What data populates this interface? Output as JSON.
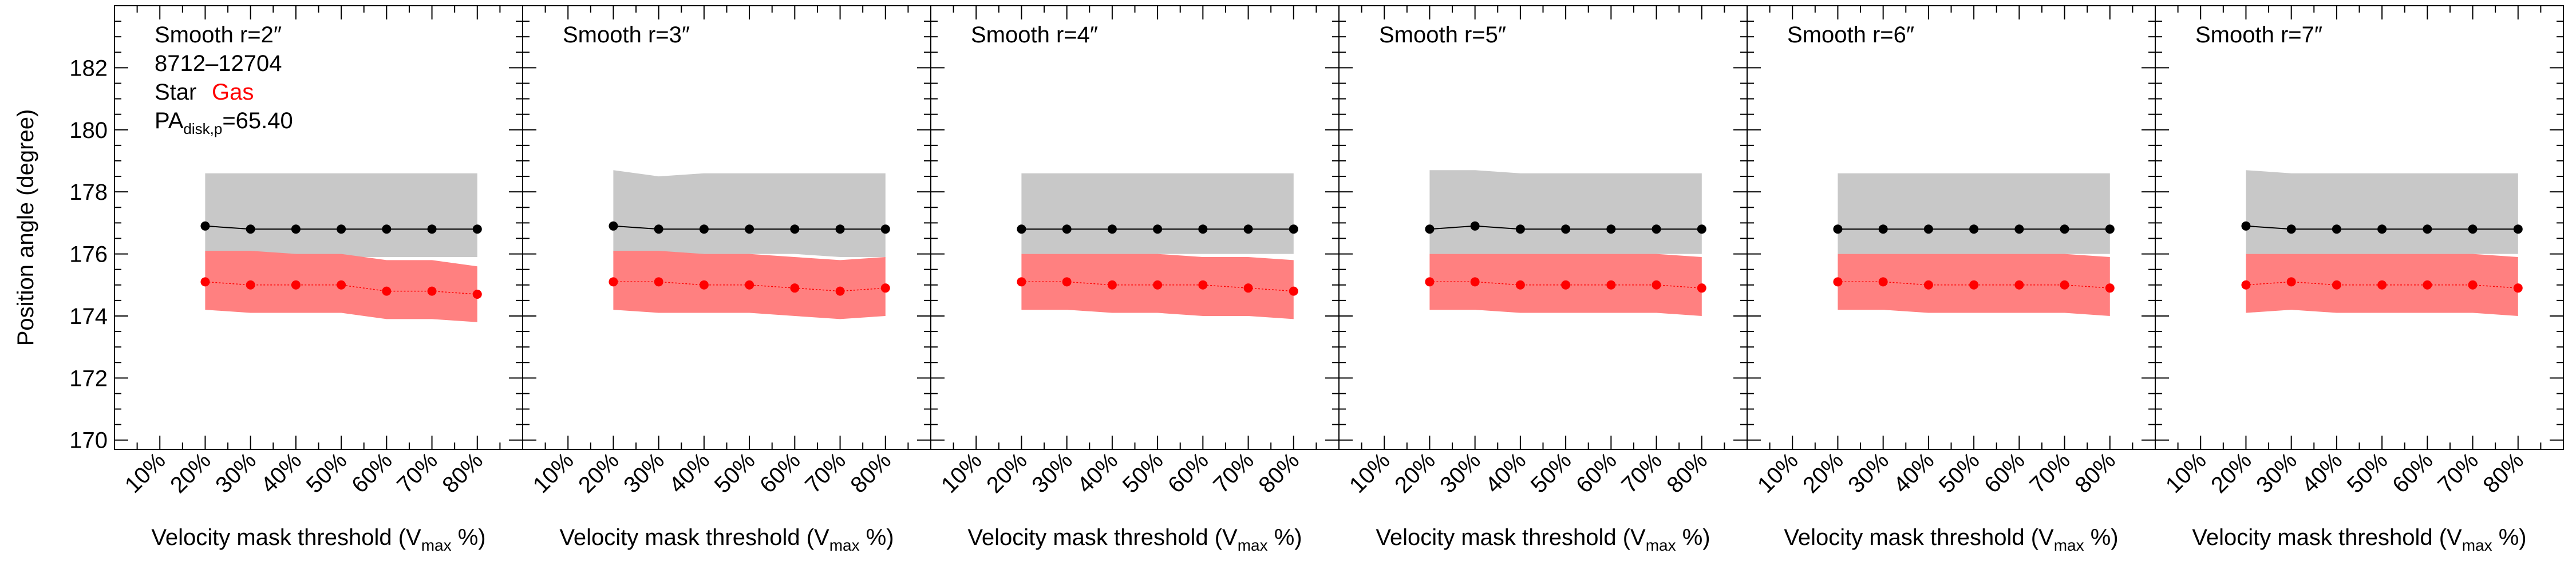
{
  "chart_data": {
    "type": "line",
    "ylabel": "Position angle (degree)",
    "ylim": [
      169.7,
      184
    ],
    "yticks": [
      170,
      172,
      174,
      176,
      178,
      180,
      182
    ],
    "xlim": [
      0,
      90
    ],
    "xticks": [
      10,
      20,
      30,
      40,
      50,
      60,
      70,
      80
    ],
    "xtick_labels": [
      "10%",
      "20%",
      "30%",
      "40%",
      "50%",
      "60%",
      "70%",
      "80%"
    ],
    "xlabel_main": "Velocity mask threshold (V",
    "xlabel_sub": "max",
    "xlabel_end": " %)",
    "annotations": {
      "galaxy_id": "8712–12704",
      "legend_star": "Star",
      "legend_gas": "Gas",
      "pa_prefix": "PA",
      "pa_sub": "disk,p",
      "pa_value": "=65.40"
    },
    "colors": {
      "star_line": "#000000",
      "star_band": "#c8c8c8",
      "gas_line": "#ff0000",
      "gas_band": "#ff8080",
      "frame": "#000000"
    },
    "x": [
      20,
      30,
      40,
      50,
      60,
      70,
      80
    ],
    "panels": [
      {
        "title": "Smooth r=2″",
        "star": [
          176.9,
          176.8,
          176.8,
          176.8,
          176.8,
          176.8,
          176.8
        ],
        "star_band_upper": [
          178.6,
          178.6,
          178.6,
          178.6,
          178.6,
          178.6,
          178.6
        ],
        "star_band_lower": [
          175.9,
          175.9,
          175.9,
          175.9,
          175.9,
          175.9,
          175.9
        ],
        "gas": [
          175.1,
          175.0,
          175.0,
          175.0,
          174.8,
          174.8,
          174.7
        ],
        "gas_band_upper": [
          176.1,
          176.1,
          176.0,
          176.0,
          175.8,
          175.8,
          175.6
        ],
        "gas_band_lower": [
          174.2,
          174.1,
          174.1,
          174.1,
          173.9,
          173.9,
          173.8
        ]
      },
      {
        "title": "Smooth r=3″",
        "star": [
          176.9,
          176.8,
          176.8,
          176.8,
          176.8,
          176.8,
          176.8
        ],
        "star_band_upper": [
          178.7,
          178.5,
          178.6,
          178.6,
          178.6,
          178.6,
          178.6
        ],
        "star_band_lower": [
          176.0,
          176.0,
          176.0,
          176.0,
          176.0,
          175.9,
          175.9
        ],
        "gas": [
          175.1,
          175.1,
          175.0,
          175.0,
          174.9,
          174.8,
          174.9
        ],
        "gas_band_upper": [
          176.1,
          176.1,
          176.0,
          176.0,
          175.9,
          175.8,
          175.9
        ],
        "gas_band_lower": [
          174.2,
          174.1,
          174.1,
          174.1,
          174.0,
          173.9,
          174.0
        ]
      },
      {
        "title": "Smooth r=4″",
        "star": [
          176.8,
          176.8,
          176.8,
          176.8,
          176.8,
          176.8,
          176.8
        ],
        "star_band_upper": [
          178.6,
          178.6,
          178.6,
          178.6,
          178.6,
          178.6,
          178.6
        ],
        "star_band_lower": [
          176.0,
          176.0,
          176.0,
          176.0,
          176.0,
          176.0,
          176.0
        ],
        "gas": [
          175.1,
          175.1,
          175.0,
          175.0,
          175.0,
          174.9,
          174.8
        ],
        "gas_band_upper": [
          176.0,
          176.0,
          176.0,
          176.0,
          175.9,
          175.9,
          175.8
        ],
        "gas_band_lower": [
          174.2,
          174.2,
          174.1,
          174.1,
          174.0,
          174.0,
          173.9
        ]
      },
      {
        "title": "Smooth r=5″",
        "star": [
          176.8,
          176.9,
          176.8,
          176.8,
          176.8,
          176.8,
          176.8
        ],
        "star_band_upper": [
          178.7,
          178.7,
          178.6,
          178.6,
          178.6,
          178.6,
          178.6
        ],
        "star_band_lower": [
          176.0,
          176.0,
          176.0,
          176.0,
          176.0,
          176.0,
          176.0
        ],
        "gas": [
          175.1,
          175.1,
          175.0,
          175.0,
          175.0,
          175.0,
          174.9
        ],
        "gas_band_upper": [
          176.0,
          176.0,
          176.0,
          176.0,
          176.0,
          176.0,
          175.9
        ],
        "gas_band_lower": [
          174.2,
          174.2,
          174.1,
          174.1,
          174.1,
          174.1,
          174.0
        ]
      },
      {
        "title": "Smooth r=6″",
        "star": [
          176.8,
          176.8,
          176.8,
          176.8,
          176.8,
          176.8,
          176.8
        ],
        "star_band_upper": [
          178.6,
          178.6,
          178.6,
          178.6,
          178.6,
          178.6,
          178.6
        ],
        "star_band_lower": [
          176.0,
          176.0,
          176.0,
          176.0,
          176.0,
          176.0,
          176.0
        ],
        "gas": [
          175.1,
          175.1,
          175.0,
          175.0,
          175.0,
          175.0,
          174.9
        ],
        "gas_band_upper": [
          176.0,
          176.0,
          176.0,
          176.0,
          176.0,
          176.0,
          175.9
        ],
        "gas_band_lower": [
          174.2,
          174.2,
          174.1,
          174.1,
          174.1,
          174.1,
          174.0
        ]
      },
      {
        "title": "Smooth r=7″",
        "star": [
          176.9,
          176.8,
          176.8,
          176.8,
          176.8,
          176.8,
          176.8
        ],
        "star_band_upper": [
          178.7,
          178.6,
          178.6,
          178.6,
          178.6,
          178.6,
          178.6
        ],
        "star_band_lower": [
          176.0,
          176.0,
          176.0,
          176.0,
          176.0,
          176.0,
          176.0
        ],
        "gas": [
          175.0,
          175.1,
          175.0,
          175.0,
          175.0,
          175.0,
          174.9
        ],
        "gas_band_upper": [
          176.0,
          176.0,
          176.0,
          176.0,
          176.0,
          176.0,
          175.9
        ],
        "gas_band_lower": [
          174.1,
          174.2,
          174.1,
          174.1,
          174.1,
          174.1,
          174.0
        ]
      }
    ]
  }
}
